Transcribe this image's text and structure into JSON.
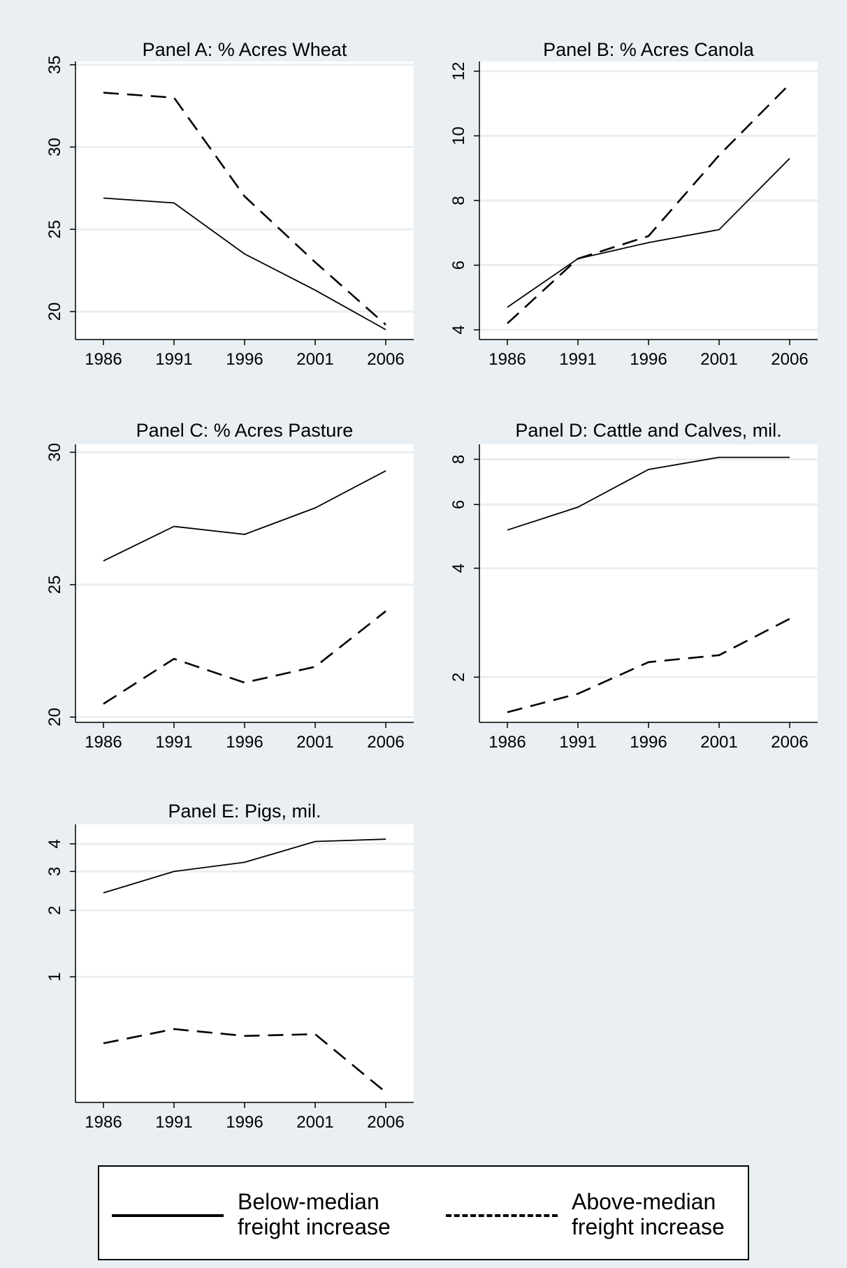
{
  "legend": {
    "below": {
      "line1": "Below-median",
      "line2": "freight increase"
    },
    "above": {
      "line1": "Above-median",
      "line2": "freight increase"
    }
  },
  "colors": {
    "background": "#e9eff2",
    "plot_area": "#ffffff",
    "gridline": "#e9eff2",
    "series": "#000000"
  },
  "chart_data": [
    {
      "type": "line",
      "title": "Panel A: % Acres Wheat",
      "x": [
        "1986",
        "1991",
        "1996",
        "2001",
        "2006"
      ],
      "yticks": [
        20,
        25,
        30,
        35
      ],
      "ylim": [
        18.3,
        35.2
      ],
      "yscale": "linear",
      "grid": true,
      "series": [
        {
          "name": "Below-median freight increase",
          "style": "solid",
          "values": [
            26.9,
            26.6,
            23.5,
            21.3,
            18.9
          ]
        },
        {
          "name": "Above-median freight increase",
          "style": "dashed",
          "values": [
            33.3,
            33.0,
            27.0,
            23.0,
            19.2
          ]
        }
      ]
    },
    {
      "type": "line",
      "title": "Panel B: % Acres Canola",
      "x": [
        "1986",
        "1991",
        "1996",
        "2001",
        "2006"
      ],
      "yticks": [
        4,
        6,
        8,
        10,
        12
      ],
      "ylim": [
        3.7,
        12.3
      ],
      "yscale": "linear",
      "grid": true,
      "series": [
        {
          "name": "Below-median freight increase",
          "style": "solid",
          "values": [
            4.7,
            6.2,
            6.7,
            7.1,
            9.3
          ]
        },
        {
          "name": "Above-median freight increase",
          "style": "dashed",
          "values": [
            4.2,
            6.2,
            6.9,
            9.4,
            11.6
          ]
        }
      ]
    },
    {
      "type": "line",
      "title": "Panel C: % Acres Pasture",
      "x": [
        "1986",
        "1991",
        "1996",
        "2001",
        "2006"
      ],
      "yticks": [
        20,
        25,
        30
      ],
      "ylim": [
        19.8,
        30.3
      ],
      "yscale": "linear",
      "grid": true,
      "series": [
        {
          "name": "Below-median freight increase",
          "style": "solid",
          "values": [
            25.9,
            27.2,
            26.9,
            27.9,
            29.3
          ]
        },
        {
          "name": "Above-median freight increase",
          "style": "dashed",
          "values": [
            20.5,
            22.2,
            21.3,
            21.9,
            24.0
          ]
        }
      ]
    },
    {
      "type": "line",
      "title": "Panel D: Cattle and Calves, mil.",
      "x": [
        "1986",
        "1991",
        "1996",
        "2001",
        "2006"
      ],
      "yticks": [
        2,
        4,
        6,
        8
      ],
      "ylim": [
        1.5,
        8.8
      ],
      "yscale": "log",
      "grid": true,
      "series": [
        {
          "name": "Below-median freight increase",
          "style": "solid",
          "values": [
            5.1,
            5.9,
            7.5,
            8.1,
            8.1
          ]
        },
        {
          "name": "Above-median freight increase",
          "style": "dashed",
          "values": [
            1.6,
            1.8,
            2.2,
            2.3,
            2.9
          ]
        }
      ]
    },
    {
      "type": "line",
      "title": "Panel E: Pigs, mil.",
      "x": [
        "1986",
        "1991",
        "1996",
        "2001",
        "2006"
      ],
      "yticks": [
        1,
        2,
        3,
        4
      ],
      "ylim": [
        0.27,
        4.9
      ],
      "yscale": "log",
      "grid": true,
      "series": [
        {
          "name": "Below-median freight increase",
          "style": "solid",
          "values": [
            2.4,
            3.0,
            3.3,
            4.1,
            4.2
          ]
        },
        {
          "name": "Above-median freight increase",
          "style": "dashed",
          "values": [
            0.5,
            0.58,
            0.54,
            0.55,
            0.3
          ]
        }
      ]
    }
  ]
}
